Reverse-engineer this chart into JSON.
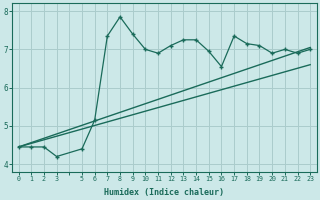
{
  "xlabel": "Humidex (Indice chaleur)",
  "bg_color": "#cce8e8",
  "grid_color": "#aacccc",
  "line_color": "#1a6b5a",
  "xlim": [
    -0.5,
    23.5
  ],
  "ylim": [
    3.8,
    8.2
  ],
  "yticks": [
    4,
    5,
    6,
    7,
    8
  ],
  "main_x": [
    0,
    1,
    2,
    3,
    5,
    6,
    7,
    8,
    9,
    10,
    11,
    12,
    13,
    14,
    15,
    16,
    17,
    18,
    19,
    20,
    21,
    22,
    23
  ],
  "main_y": [
    4.45,
    4.45,
    4.45,
    4.2,
    4.4,
    5.15,
    7.35,
    7.85,
    7.4,
    7.0,
    6.9,
    7.1,
    7.25,
    7.25,
    6.95,
    6.55,
    7.35,
    7.15,
    7.1,
    6.9,
    7.0,
    6.9,
    7.0
  ],
  "line1_x": [
    0,
    23
  ],
  "line1_y": [
    4.45,
    7.05
  ],
  "line2_x": [
    0,
    23
  ],
  "line2_y": [
    4.45,
    6.6
  ],
  "xtick_labels": [
    "0",
    "1",
    "2",
    "3",
    "",
    "5",
    "6",
    "7",
    "8",
    "9",
    "10",
    "11",
    "12",
    "13",
    "14",
    "15",
    "16",
    "17",
    "18",
    "19",
    "20",
    "21",
    "22",
    "23"
  ]
}
